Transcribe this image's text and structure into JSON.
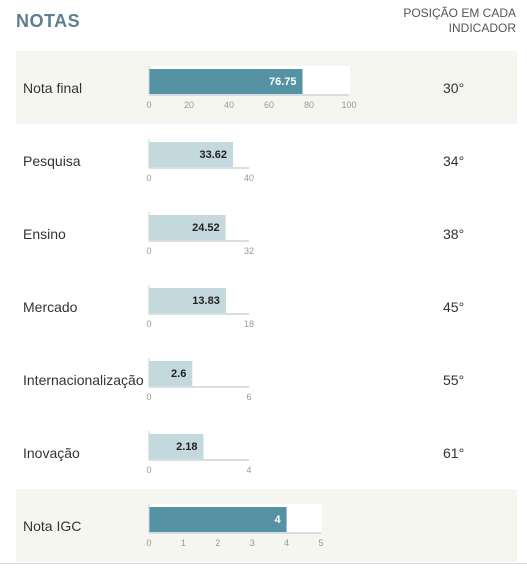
{
  "header": {
    "title": "NOTAS",
    "rank_line1": "POSIÇÃO EM CADA",
    "rank_line2": "INDICADOR"
  },
  "colors": {
    "highlight_bar": "#5592a3",
    "light_bar": "#c4d9dd",
    "axis": "#c9d6da",
    "tick_text": "#999999",
    "shaded_row": "#f6f6f0"
  },
  "chart_data": {
    "type": "bar",
    "orientation": "horizontal",
    "title": "NOTAS",
    "rank_header": "POSIÇÃO EM CADA INDICADOR",
    "rows": [
      {
        "label": "Nota final",
        "value": 76.75,
        "value_label": "76.75",
        "max": 100,
        "ticks": [
          0,
          20,
          40,
          60,
          80,
          100
        ],
        "rank": "30°",
        "highlight": true
      },
      {
        "label": "Pesquisa",
        "value": 33.62,
        "value_label": "33.62",
        "max": 40,
        "ticks": [
          0,
          40
        ],
        "rank": "34°",
        "highlight": false
      },
      {
        "label": "Ensino",
        "value": 24.52,
        "value_label": "24.52",
        "max": 32,
        "ticks": [
          0,
          32
        ],
        "rank": "38°",
        "highlight": false
      },
      {
        "label": "Mercado",
        "value": 13.83,
        "value_label": "13.83",
        "max": 18,
        "ticks": [
          0,
          18
        ],
        "rank": "45°",
        "highlight": false
      },
      {
        "label": "Internacionalização",
        "value": 2.6,
        "value_label": "2.6",
        "max": 6,
        "ticks": [
          0,
          6
        ],
        "rank": "55°",
        "highlight": false
      },
      {
        "label": "Inovação",
        "value": 2.18,
        "value_label": "2.18",
        "max": 4,
        "ticks": [
          0,
          4
        ],
        "rank": "61°",
        "highlight": false
      },
      {
        "label": "Nota IGC",
        "value": 4,
        "value_label": "4",
        "max": 5,
        "ticks": [
          0,
          1,
          2,
          3,
          4,
          5
        ],
        "rank": "",
        "highlight": true
      }
    ]
  }
}
